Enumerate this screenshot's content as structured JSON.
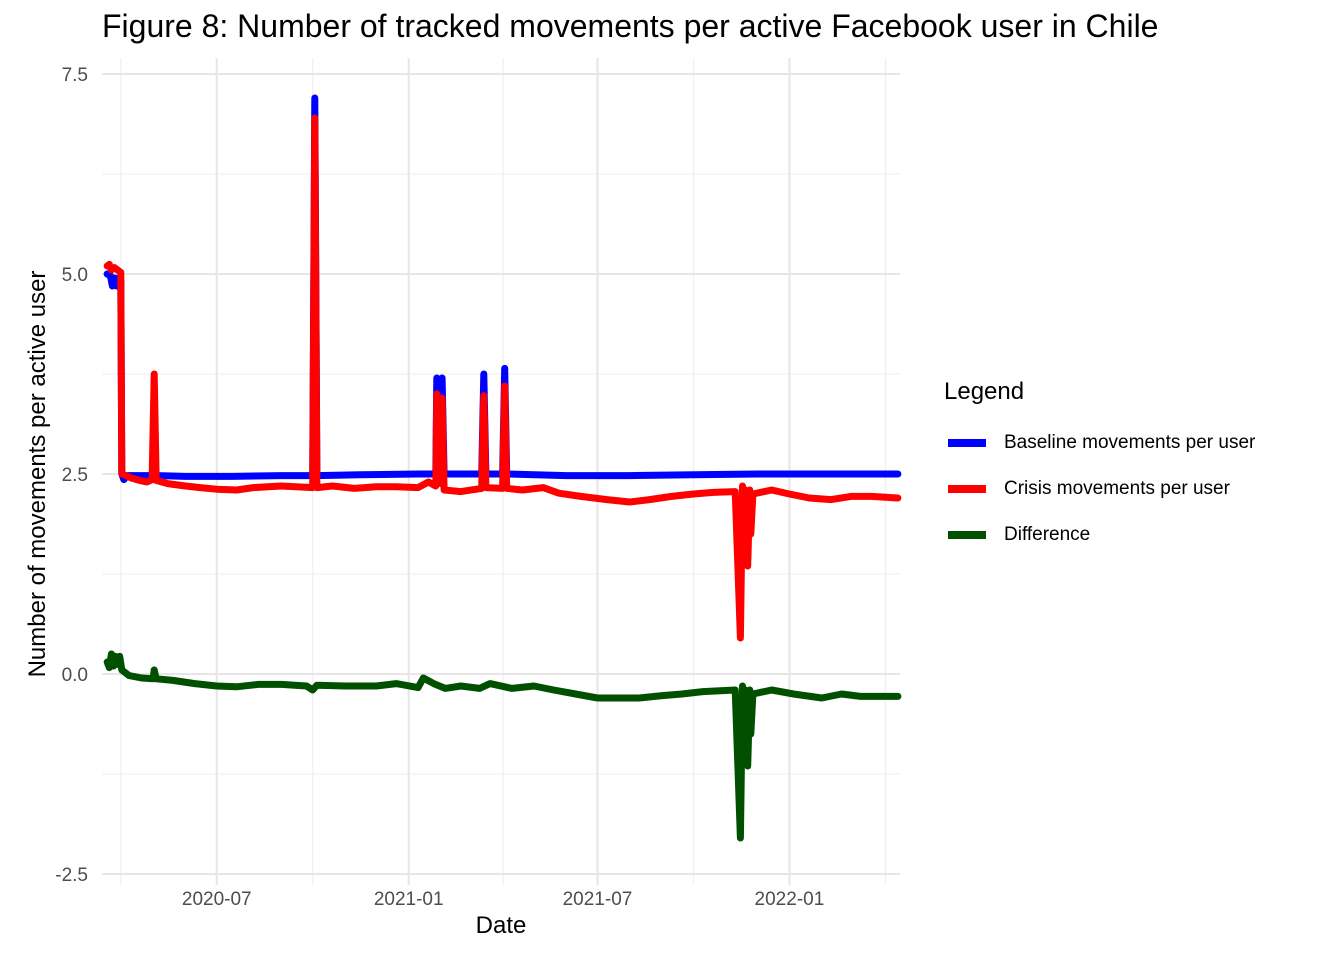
{
  "chart_data": {
    "type": "line",
    "title": "Figure 8: Number of tracked movements per active Facebook user in Chile",
    "xlabel": "Date",
    "ylabel": "Number of movements per active user",
    "x_tick_labels": [
      "2020-07",
      "2021-01",
      "2021-07",
      "2022-01"
    ],
    "y_tick_labels": [
      "-2.5",
      "0.0",
      "2.5",
      "5.0",
      "7.5"
    ],
    "ylim": [
      -2.5,
      7.5
    ],
    "xlim": [
      "2020-03-13",
      "2022-04-17"
    ],
    "grid": true,
    "legend": {
      "title": "Legend",
      "position": "right",
      "entries": [
        "Baseline movements per user",
        "Crisis movements per user",
        "Difference"
      ]
    },
    "series": [
      {
        "name": "Baseline movements per user",
        "color": "#0000ff",
        "points": [
          [
            "2020-03-18",
            5.0
          ],
          [
            "2020-03-21",
            4.98
          ],
          [
            "2020-03-23",
            4.85
          ],
          [
            "2020-03-25",
            4.95
          ],
          [
            "2020-03-27",
            4.85
          ],
          [
            "2020-03-29",
            4.95
          ],
          [
            "2020-03-31",
            4.92
          ],
          [
            "2020-04-01",
            2.5
          ],
          [
            "2020-04-03",
            2.43
          ],
          [
            "2020-04-06",
            2.48
          ],
          [
            "2020-04-15",
            2.48
          ],
          [
            "2020-05-01",
            2.48
          ],
          [
            "2020-05-04",
            2.5
          ],
          [
            "2020-05-06",
            2.48
          ],
          [
            "2020-06-01",
            2.47
          ],
          [
            "2020-07-15",
            2.47
          ],
          [
            "2020-09-01",
            2.48
          ],
          [
            "2020-10-01",
            2.48
          ],
          [
            "2020-10-03",
            7.2
          ],
          [
            "2020-10-05",
            2.48
          ],
          [
            "2020-11-15",
            2.49
          ],
          [
            "2021-01-10",
            2.5
          ],
          [
            "2021-01-27",
            2.5
          ],
          [
            "2021-01-28",
            3.7
          ],
          [
            "2021-02-01",
            2.5
          ],
          [
            "2021-02-02",
            3.7
          ],
          [
            "2021-02-04",
            2.5
          ],
          [
            "2021-03-12",
            2.5
          ],
          [
            "2021-03-14",
            3.75
          ],
          [
            "2021-03-16",
            2.5
          ],
          [
            "2021-04-01",
            2.5
          ],
          [
            "2021-04-03",
            3.82
          ],
          [
            "2021-04-05",
            2.5
          ],
          [
            "2021-06-01",
            2.48
          ],
          [
            "2021-08-01",
            2.48
          ],
          [
            "2021-10-01",
            2.49
          ],
          [
            "2021-12-01",
            2.5
          ],
          [
            "2022-04-15",
            2.5
          ]
        ]
      },
      {
        "name": "Crisis movements per user",
        "color": "#ff0000",
        "points": [
          [
            "2020-03-18",
            5.1
          ],
          [
            "2020-03-20",
            5.12
          ],
          [
            "2020-03-22",
            5.05
          ],
          [
            "2020-03-25",
            5.08
          ],
          [
            "2020-03-28",
            5.05
          ],
          [
            "2020-03-31",
            5.02
          ],
          [
            "2020-04-01",
            2.5
          ],
          [
            "2020-04-05",
            2.48
          ],
          [
            "2020-04-10",
            2.45
          ],
          [
            "2020-04-18",
            2.42
          ],
          [
            "2020-04-25",
            2.4
          ],
          [
            "2020-04-30",
            2.43
          ],
          [
            "2020-05-02",
            3.75
          ],
          [
            "2020-05-04",
            2.42
          ],
          [
            "2020-05-15",
            2.38
          ],
          [
            "2020-06-01",
            2.35
          ],
          [
            "2020-06-15",
            2.33
          ],
          [
            "2020-07-01",
            2.31
          ],
          [
            "2020-07-20",
            2.3
          ],
          [
            "2020-08-05",
            2.33
          ],
          [
            "2020-09-01",
            2.35
          ],
          [
            "2020-10-01",
            2.33
          ],
          [
            "2020-10-03",
            6.95
          ],
          [
            "2020-10-05",
            2.33
          ],
          [
            "2020-10-20",
            2.35
          ],
          [
            "2020-11-10",
            2.32
          ],
          [
            "2020-12-01",
            2.34
          ],
          [
            "2020-12-20",
            2.34
          ],
          [
            "2021-01-10",
            2.33
          ],
          [
            "2021-01-20",
            2.4
          ],
          [
            "2021-01-27",
            2.35
          ],
          [
            "2021-01-28",
            3.5
          ],
          [
            "2021-02-01",
            2.38
          ],
          [
            "2021-02-02",
            3.45
          ],
          [
            "2021-02-04",
            2.3
          ],
          [
            "2021-02-20",
            2.28
          ],
          [
            "2021-03-12",
            2.32
          ],
          [
            "2021-03-14",
            3.48
          ],
          [
            "2021-03-16",
            2.33
          ],
          [
            "2021-04-01",
            2.32
          ],
          [
            "2021-04-03",
            3.6
          ],
          [
            "2021-04-05",
            2.32
          ],
          [
            "2021-04-20",
            2.3
          ],
          [
            "2021-05-10",
            2.33
          ],
          [
            "2021-05-25",
            2.26
          ],
          [
            "2021-06-15",
            2.22
          ],
          [
            "2021-07-10",
            2.18
          ],
          [
            "2021-08-01",
            2.15
          ],
          [
            "2021-08-20",
            2.18
          ],
          [
            "2021-09-10",
            2.22
          ],
          [
            "2021-10-01",
            2.25
          ],
          [
            "2021-10-20",
            2.27
          ],
          [
            "2021-11-10",
            2.28
          ],
          [
            "2021-11-15",
            0.45
          ],
          [
            "2021-11-17",
            2.35
          ],
          [
            "2021-11-18",
            2.0
          ],
          [
            "2021-11-20",
            2.3
          ],
          [
            "2021-11-22",
            1.35
          ],
          [
            "2021-11-24",
            2.3
          ],
          [
            "2021-11-25",
            1.75
          ],
          [
            "2021-11-27",
            2.25
          ],
          [
            "2021-12-15",
            2.3
          ],
          [
            "2022-01-01",
            2.25
          ],
          [
            "2022-01-20",
            2.2
          ],
          [
            "2022-02-10",
            2.18
          ],
          [
            "2022-03-01",
            2.22
          ],
          [
            "2022-03-20",
            2.22
          ],
          [
            "2022-04-15",
            2.2
          ]
        ]
      },
      {
        "name": "Difference",
        "color": "#005000",
        "points": [
          [
            "2020-03-18",
            0.15
          ],
          [
            "2020-03-20",
            0.08
          ],
          [
            "2020-03-22",
            0.25
          ],
          [
            "2020-03-24",
            0.1
          ],
          [
            "2020-03-26",
            0.22
          ],
          [
            "2020-03-28",
            0.12
          ],
          [
            "2020-03-30",
            0.22
          ],
          [
            "2020-04-01",
            0.05
          ],
          [
            "2020-04-08",
            -0.02
          ],
          [
            "2020-04-20",
            -0.05
          ],
          [
            "2020-05-01",
            -0.06
          ],
          [
            "2020-05-02",
            0.05
          ],
          [
            "2020-05-04",
            -0.06
          ],
          [
            "2020-05-20",
            -0.08
          ],
          [
            "2020-06-10",
            -0.12
          ],
          [
            "2020-07-01",
            -0.15
          ],
          [
            "2020-07-20",
            -0.16
          ],
          [
            "2020-08-10",
            -0.13
          ],
          [
            "2020-09-01",
            -0.13
          ],
          [
            "2020-09-25",
            -0.15
          ],
          [
            "2020-10-01",
            -0.2
          ],
          [
            "2020-10-05",
            -0.14
          ],
          [
            "2020-11-01",
            -0.15
          ],
          [
            "2020-12-01",
            -0.15
          ],
          [
            "2020-12-20",
            -0.12
          ],
          [
            "2021-01-10",
            -0.17
          ],
          [
            "2021-01-15",
            -0.05
          ],
          [
            "2021-01-25",
            -0.12
          ],
          [
            "2021-02-05",
            -0.18
          ],
          [
            "2021-02-20",
            -0.15
          ],
          [
            "2021-03-10",
            -0.18
          ],
          [
            "2021-03-20",
            -0.12
          ],
          [
            "2021-04-10",
            -0.18
          ],
          [
            "2021-05-01",
            -0.15
          ],
          [
            "2021-05-20",
            -0.2
          ],
          [
            "2021-06-10",
            -0.25
          ],
          [
            "2021-07-01",
            -0.3
          ],
          [
            "2021-07-20",
            -0.3
          ],
          [
            "2021-08-10",
            -0.3
          ],
          [
            "2021-09-01",
            -0.27
          ],
          [
            "2021-09-20",
            -0.25
          ],
          [
            "2021-10-10",
            -0.22
          ],
          [
            "2021-11-10",
            -0.2
          ],
          [
            "2021-11-15",
            -2.05
          ],
          [
            "2021-11-17",
            -0.15
          ],
          [
            "2021-11-18",
            -0.55
          ],
          [
            "2021-11-20",
            -0.2
          ],
          [
            "2021-11-22",
            -1.15
          ],
          [
            "2021-11-24",
            -0.2
          ],
          [
            "2021-11-25",
            -0.75
          ],
          [
            "2021-11-27",
            -0.25
          ],
          [
            "2021-12-15",
            -0.2
          ],
          [
            "2022-01-05",
            -0.25
          ],
          [
            "2022-02-01",
            -0.3
          ],
          [
            "2022-02-20",
            -0.25
          ],
          [
            "2022-03-10",
            -0.28
          ],
          [
            "2022-04-15",
            -0.28
          ]
        ]
      }
    ]
  }
}
